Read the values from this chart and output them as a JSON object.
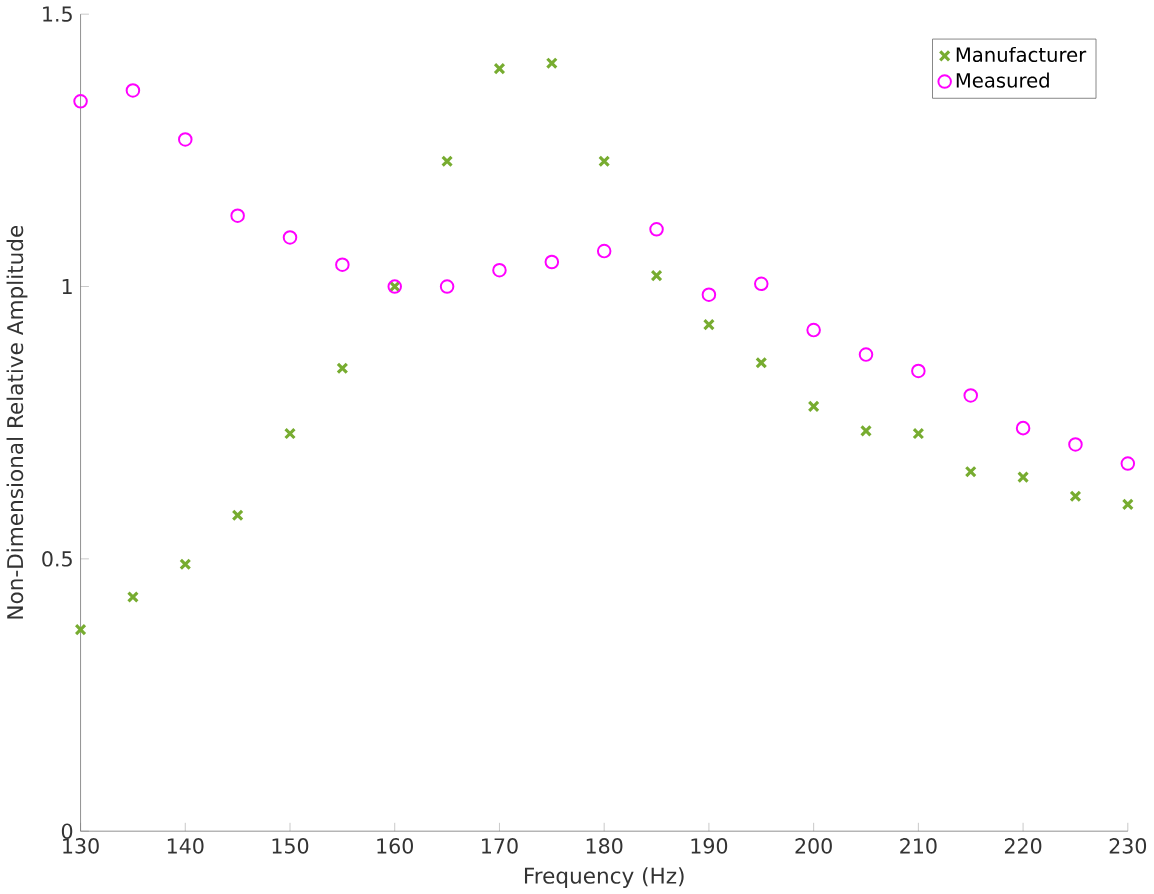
{
  "chart_data": {
    "type": "scatter",
    "xlabel": "Frequency (Hz)",
    "ylabel": "Non-Dimensional Relative Amplitude",
    "x": [
      130,
      135,
      140,
      145,
      150,
      155,
      160,
      165,
      170,
      175,
      180,
      185,
      190,
      195,
      200,
      205,
      210,
      215,
      220,
      225,
      230
    ],
    "series": [
      {
        "name": "Manufacturer",
        "color": "#77ac30",
        "marker": "cross",
        "values": [
          0.37,
          0.43,
          0.49,
          0.58,
          0.73,
          0.85,
          1.0,
          1.23,
          1.4,
          1.41,
          1.23,
          1.02,
          0.93,
          0.86,
          0.78,
          0.735,
          0.73,
          0.66,
          0.65,
          0.615,
          0.6
        ]
      },
      {
        "name": "Measured",
        "color": "#ff00ff",
        "marker": "circle",
        "values": [
          1.34,
          1.36,
          1.27,
          1.13,
          1.09,
          1.04,
          1.0,
          1.0,
          1.03,
          1.045,
          1.065,
          1.105,
          0.985,
          1.005,
          0.92,
          0.875,
          0.845,
          0.8,
          0.74,
          0.71,
          0.675
        ]
      }
    ],
    "xlim": [
      130,
      230
    ],
    "ylim": [
      0,
      1.5
    ],
    "xticks": [
      130,
      140,
      150,
      160,
      170,
      180,
      190,
      200,
      210,
      220,
      230
    ],
    "yticks": [
      0,
      0.5,
      1,
      1.5
    ],
    "legend": "top right",
    "grid": false
  }
}
